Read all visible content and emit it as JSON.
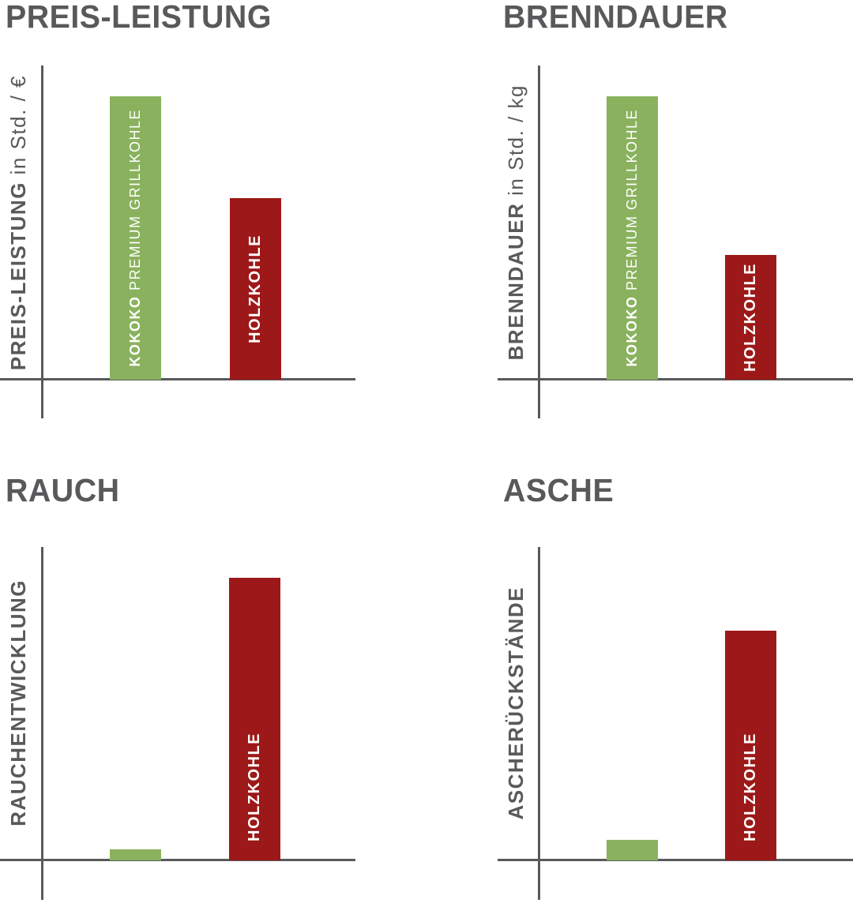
{
  "colors": {
    "title_gray": "#58595b",
    "axis_gray": "#58595b",
    "kokoko_green": "#8ab25e",
    "holzkohle_red": "#9d1818",
    "bar_label_white": "#ffffff",
    "background": "#ffffff"
  },
  "charts": [
    {
      "title": "PREIS-LEISTUNG",
      "ylabel_bold": "PREIS-LEISTUNG",
      "ylabel_rest": "in Std. / €",
      "bars": [
        {
          "label_bold": "KOKOKO",
          "label_rest": "PREMIUM GRILLKOHLE"
        },
        {
          "label_bold": "HOLZKOHLE",
          "label_rest": ""
        }
      ]
    },
    {
      "title": "BRENNDAUER",
      "ylabel_bold": "BRENNDAUER",
      "ylabel_rest": "in Std. / kg",
      "bars": [
        {
          "label_bold": "KOKOKO",
          "label_rest": "PREMIUM GRILLKOHLE"
        },
        {
          "label_bold": "HOLZKOHLE",
          "label_rest": ""
        }
      ]
    },
    {
      "title": "RAUCH",
      "ylabel_bold": "RAUCHENTWICKLUNG",
      "ylabel_rest": "",
      "bars": [
        {
          "label_bold": "",
          "label_rest": ""
        },
        {
          "label_bold": "HOLZKOHLE",
          "label_rest": ""
        }
      ]
    },
    {
      "title": "ASCHE",
      "ylabel_bold": "ASCHERÜCKSTÄNDE",
      "ylabel_rest": "",
      "bars": [
        {
          "label_bold": "",
          "label_rest": ""
        },
        {
          "label_bold": "HOLZKOHLE",
          "label_rest": ""
        }
      ]
    }
  ],
  "chart_data": [
    {
      "type": "bar",
      "title": "PREIS-LEISTUNG",
      "ylabel": "PREIS-LEISTUNG in Std. / €",
      "categories": [
        "KOKOKO PREMIUM GRILLKOHLE",
        "HOLZKOHLE"
      ],
      "values": [
        100,
        64
      ],
      "series_colors": [
        "#8ab25e",
        "#9d1818"
      ],
      "ylim": [
        0,
        100
      ],
      "grid": false,
      "legend": "labels inside bars",
      "value_unit": "relative, no numeric ticks shown"
    },
    {
      "type": "bar",
      "title": "BRENNDAUER",
      "ylabel": "BRENNDAUER in Std. / kg",
      "categories": [
        "KOKOKO PREMIUM GRILLKOHLE",
        "HOLZKOHLE"
      ],
      "values": [
        100,
        44
      ],
      "series_colors": [
        "#8ab25e",
        "#9d1818"
      ],
      "ylim": [
        0,
        100
      ],
      "grid": false,
      "legend": "labels inside bars",
      "value_unit": "relative, no numeric ticks shown"
    },
    {
      "type": "bar",
      "title": "RAUCH",
      "ylabel": "RAUCHENTWICKLUNG",
      "categories": [
        "KOKOKO PREMIUM GRILLKOHLE",
        "HOLZKOHLE"
      ],
      "values": [
        4,
        100
      ],
      "series_colors": [
        "#8ab25e",
        "#9d1818"
      ],
      "ylim": [
        0,
        100
      ],
      "grid": false,
      "legend": "label inside red bar only",
      "value_unit": "relative, no numeric ticks shown"
    },
    {
      "type": "bar",
      "title": "ASCHE",
      "ylabel": "ASCHERÜCKSTÄNDE",
      "categories": [
        "KOKOKO PREMIUM GRILLKOHLE",
        "HOLZKOHLE"
      ],
      "values": [
        9,
        100
      ],
      "series_colors": [
        "#8ab25e",
        "#9d1818"
      ],
      "ylim": [
        0,
        100
      ],
      "grid": false,
      "legend": "label inside red bar only",
      "value_unit": "relative, no numeric ticks shown"
    }
  ]
}
